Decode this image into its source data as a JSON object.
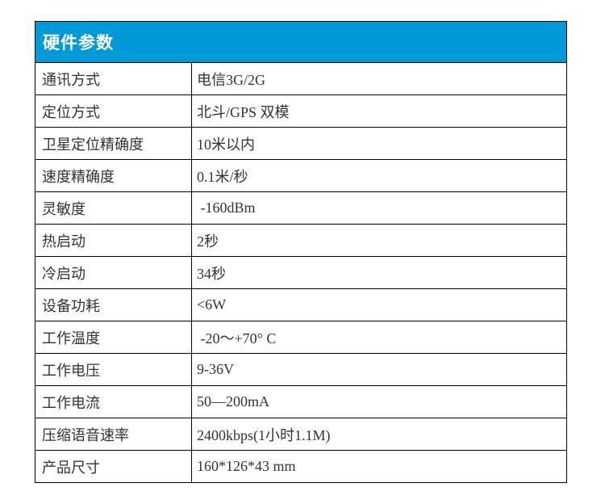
{
  "theme": {
    "accent": "#009ad8",
    "header_text": "#ffffff",
    "border": "#000000",
    "cell_text": "#333333",
    "background": "#ffffff"
  },
  "table": {
    "header": {
      "title": "硬件参数"
    },
    "rows": [
      {
        "label": "通讯方式",
        "value": "电信3G/2G"
      },
      {
        "label": "定位方式",
        "value": "北斗/GPS 双模"
      },
      {
        "label": "卫星定位精确度",
        "value": "10米以内"
      },
      {
        "label": "速度精确度",
        "value": "0.1米/秒"
      },
      {
        "label": "灵敏度",
        "value": " -160dBm"
      },
      {
        "label": "热启动",
        "value": "2秒"
      },
      {
        "label": "冷启动",
        "value": "34秒"
      },
      {
        "label": "设备功耗",
        "value": "<6W"
      },
      {
        "label": "工作温度",
        "value": " -20～+70° C"
      },
      {
        "label": "工作电压",
        "value": "9-36V"
      },
      {
        "label": "工作电流",
        "value": "50—200mA"
      },
      {
        "label": "压缩语音速率",
        "value": "2400kbps(1小时1.1M)"
      },
      {
        "label": "产品尺寸",
        "value": "160*126*43 mm"
      }
    ]
  }
}
